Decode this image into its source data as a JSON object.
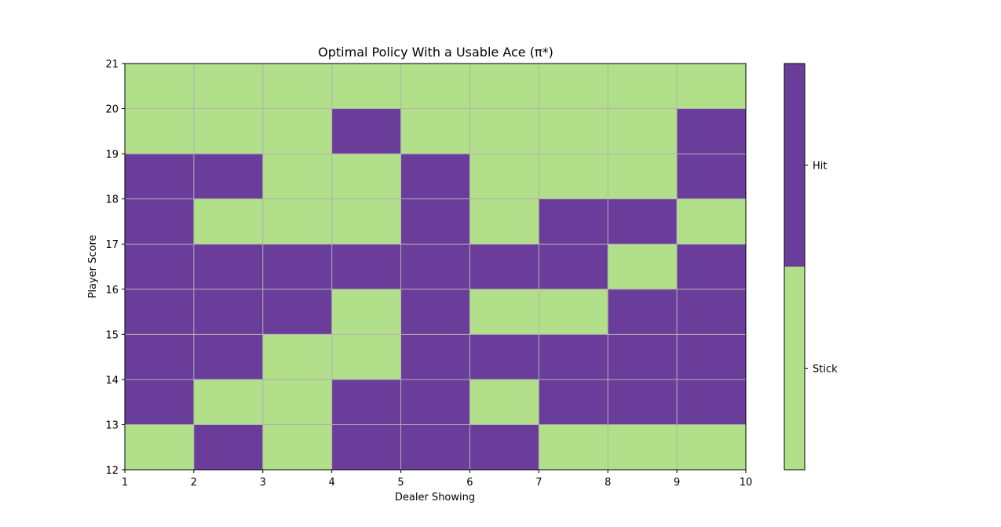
{
  "chart_data": {
    "type": "heatmap",
    "title": "Optimal Policy With a Usable Ace (π*)",
    "xlabel": "Dealer Showing",
    "ylabel": "Player Score",
    "xlim": [
      1,
      10
    ],
    "ylim": [
      12,
      21
    ],
    "x_ticks": [
      "1",
      "2",
      "3",
      "4",
      "5",
      "6",
      "7",
      "8",
      "9",
      "10"
    ],
    "y_ticks": [
      "12",
      "13",
      "14",
      "15",
      "16",
      "17",
      "18",
      "19",
      "20",
      "21"
    ],
    "grid": true,
    "colorbar": {
      "ticks": [
        {
          "label": "Stick",
          "value": 0
        },
        {
          "label": "Hit",
          "value": 1
        }
      ],
      "colors": {
        "0": "#b2df8a",
        "1": "#6a3d9a"
      }
    },
    "z_note": "rows listed from player score 12 (bottom) to 20 (top); columns dealer 1..9; 0 = Stick, 1 = Hit",
    "z": [
      [
        0,
        1,
        0,
        1,
        1,
        1,
        0,
        0,
        0
      ],
      [
        1,
        0,
        0,
        1,
        1,
        0,
        1,
        1,
        1
      ],
      [
        1,
        1,
        0,
        0,
        1,
        1,
        1,
        1,
        1
      ],
      [
        1,
        1,
        1,
        0,
        1,
        0,
        0,
        1,
        1
      ],
      [
        1,
        1,
        1,
        1,
        1,
        1,
        1,
        0,
        1
      ],
      [
        1,
        0,
        0,
        0,
        1,
        0,
        1,
        1,
        0
      ],
      [
        1,
        1,
        0,
        0,
        1,
        0,
        0,
        0,
        1
      ],
      [
        0,
        0,
        0,
        1,
        0,
        0,
        0,
        0,
        1
      ],
      [
        0,
        0,
        0,
        0,
        0,
        0,
        0,
        0,
        0
      ]
    ]
  }
}
